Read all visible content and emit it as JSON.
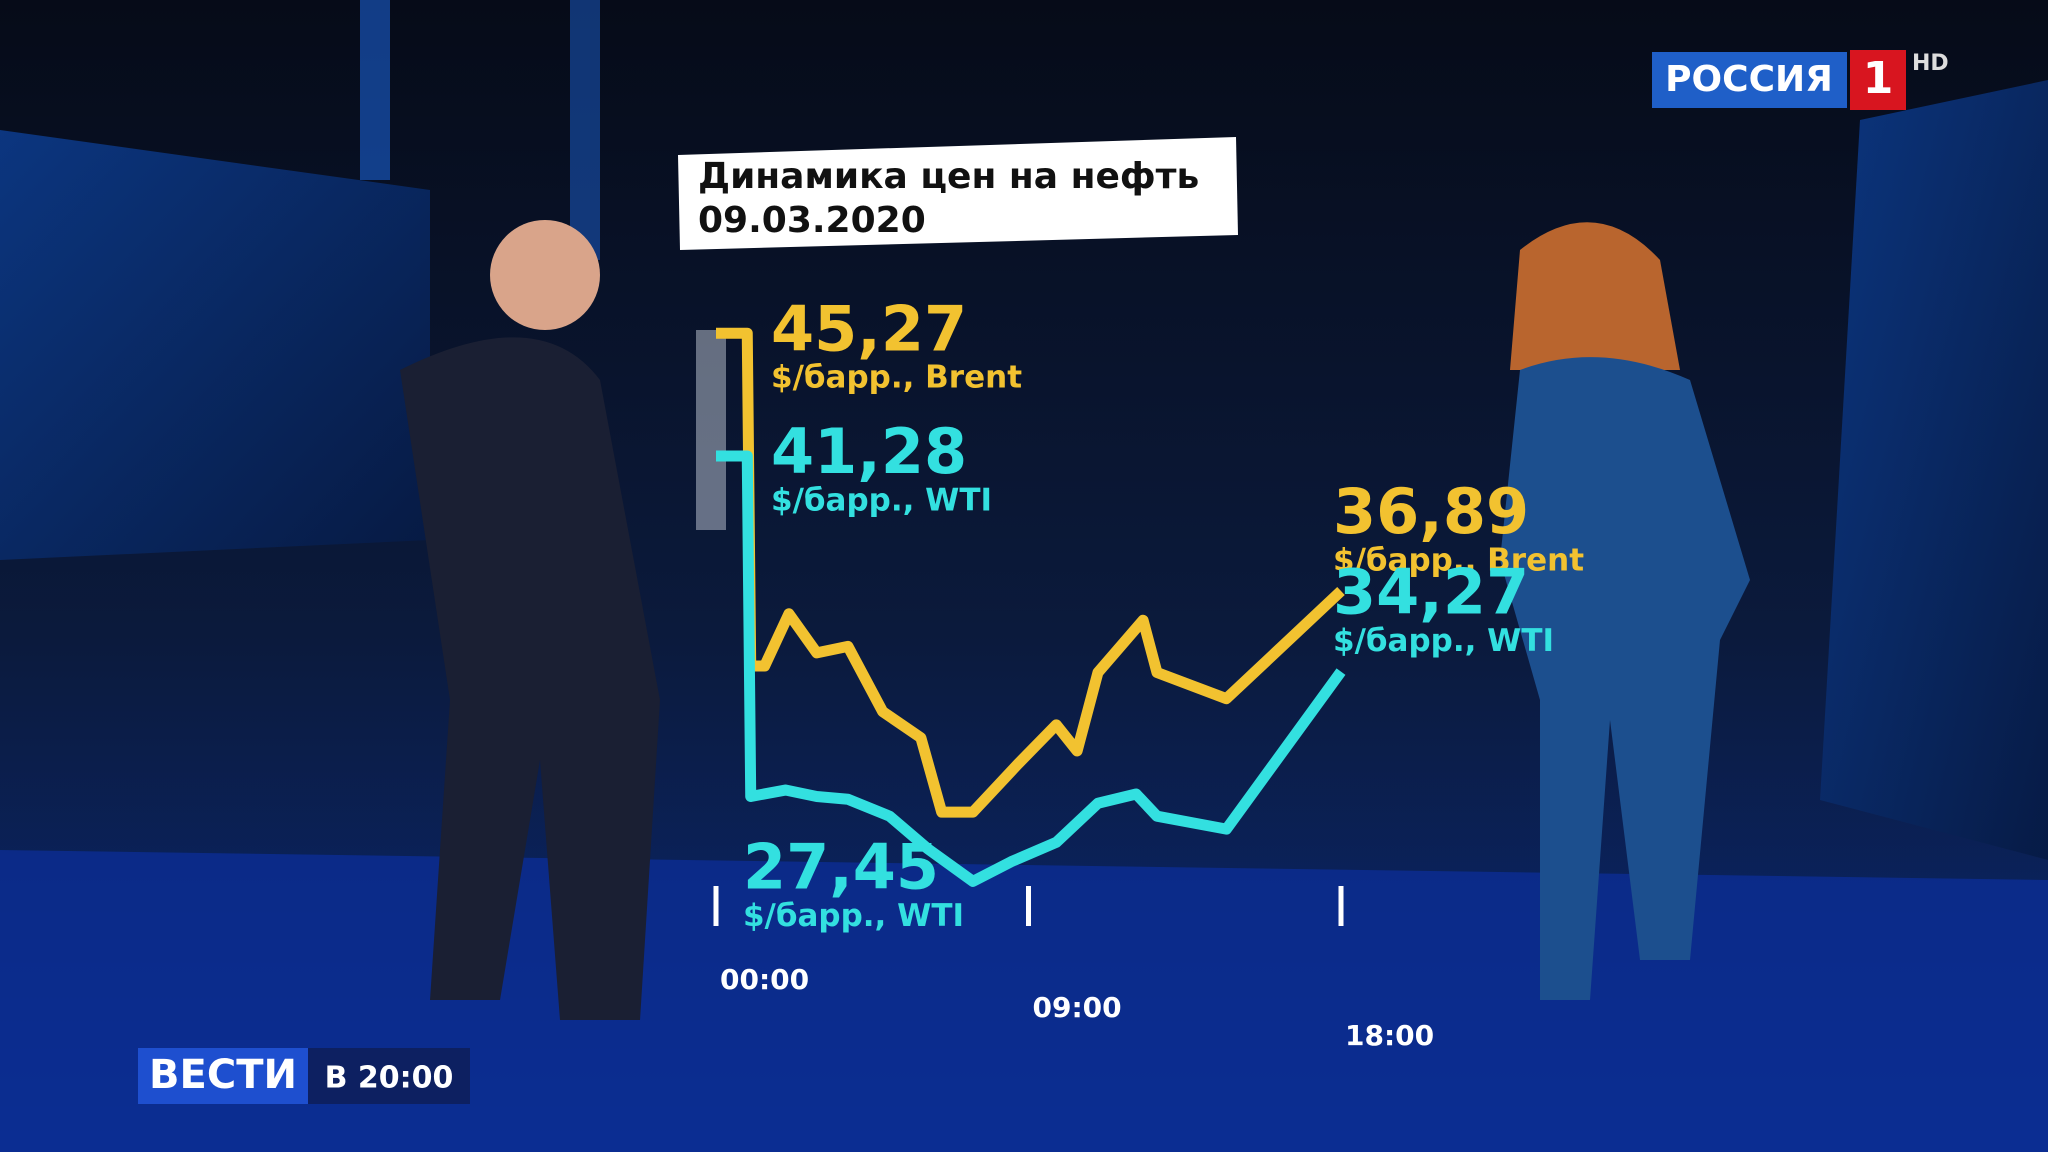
{
  "chart_data": {
    "type": "line",
    "title": "Динамика цен на нефть",
    "subtitle": "09.03.2020",
    "xlim": [
      0,
      18
    ],
    "xticks": [
      {
        "value": 0,
        "label": "00:00"
      },
      {
        "value": 9,
        "label": "09:00"
      },
      {
        "value": 18,
        "label": "18:00"
      }
    ],
    "ylim": [
      26,
      47
    ],
    "series": [
      {
        "name": "$/барр., Brent",
        "color": "#f2c230",
        "x": [
          0,
          0.9,
          1.0,
          1.4,
          2.1,
          2.9,
          3.8,
          4.8,
          5.9,
          6.5,
          7.4,
          8.7,
          9.8,
          10.4,
          11.0,
          12.3,
          12.7,
          14.7,
          18
        ],
        "values": [
          45.27,
          45.27,
          34.45,
          34.45,
          36.15,
          34.88,
          35.09,
          32.97,
          32.12,
          29.7,
          29.7,
          31.27,
          32.54,
          31.69,
          34.24,
          35.94,
          34.24,
          33.39,
          36.89
        ],
        "value_labels": [
          "45,27",
          null,
          null,
          null,
          null,
          null,
          null,
          null,
          null,
          null,
          null,
          null,
          null,
          null,
          null,
          null,
          null,
          null,
          "36,89"
        ]
      },
      {
        "name": "$/барр., WTI",
        "color": "#33e0e0",
        "x": [
          0,
          0.9,
          1.0,
          2.0,
          2.9,
          3.8,
          5.0,
          6.1,
          7.4,
          8.5,
          9.8,
          11.0,
          12.1,
          12.7,
          14.7,
          18
        ],
        "values": [
          41.28,
          41.28,
          30.21,
          30.42,
          30.21,
          30.12,
          29.57,
          28.51,
          27.45,
          28.09,
          28.72,
          29.99,
          30.29,
          29.57,
          29.15,
          34.27
        ],
        "value_labels": [
          "41,28",
          null,
          null,
          null,
          null,
          null,
          null,
          null,
          "27,45",
          null,
          null,
          null,
          null,
          null,
          null,
          "34,27"
        ]
      }
    ]
  },
  "channel": {
    "name": "РОССИЯ",
    "number": "1",
    "quality": "HD"
  },
  "program": {
    "name": "ВЕСТИ",
    "time": "В 20:00"
  }
}
